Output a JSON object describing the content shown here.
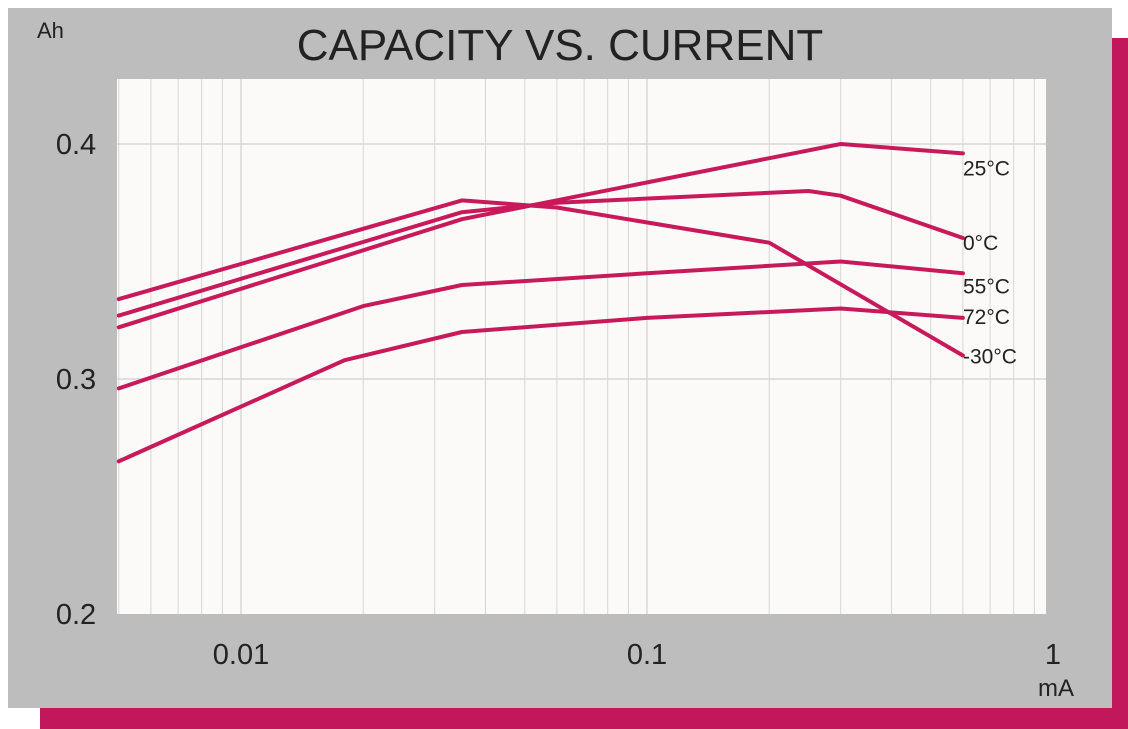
{
  "colors": {
    "panel": "#bdbdbd",
    "plot_bg": "#fbfaf8",
    "accent_border": "#c2185b",
    "curve": "#c81a5a",
    "grid": "#d6d6d6",
    "text": "#222222"
  },
  "chart_data": {
    "type": "line",
    "title": "CAPACITY  VS. CURRENT",
    "xlabel": "mA",
    "ylabel": "Ah",
    "x_scale": "log",
    "xlim": [
      0.005,
      1
    ],
    "ylim": [
      0.2,
      0.42
    ],
    "x_ticks": [
      {
        "value": 0.01,
        "label": "0.01"
      },
      {
        "value": 0.1,
        "label": "0.1"
      },
      {
        "value": 1,
        "label": "1"
      }
    ],
    "y_ticks": [
      {
        "value": 0.4,
        "label": "0.4"
      },
      {
        "value": 0.3,
        "label": "0.3"
      },
      {
        "value": 0.2,
        "label": "0.2"
      }
    ],
    "grid": true,
    "series": [
      {
        "name": "25°C",
        "x": [
          0.005,
          0.035,
          0.3,
          0.6
        ],
        "y": [
          0.322,
          0.368,
          0.4,
          0.396
        ]
      },
      {
        "name": "0°C",
        "x": [
          0.005,
          0.035,
          0.06,
          0.25,
          0.3,
          0.6
        ],
        "y": [
          0.327,
          0.371,
          0.375,
          0.38,
          0.378,
          0.36
        ]
      },
      {
        "name": "55°C",
        "x": [
          0.005,
          0.02,
          0.035,
          0.1,
          0.3,
          0.6
        ],
        "y": [
          0.296,
          0.331,
          0.34,
          0.345,
          0.35,
          0.345
        ]
      },
      {
        "name": "72°C",
        "x": [
          0.005,
          0.018,
          0.035,
          0.1,
          0.3,
          0.6
        ],
        "y": [
          0.265,
          0.308,
          0.32,
          0.326,
          0.33,
          0.326
        ]
      },
      {
        "name": "-30°C",
        "x": [
          0.005,
          0.035,
          0.06,
          0.2,
          0.6
        ],
        "y": [
          0.334,
          0.376,
          0.373,
          0.358,
          0.31
        ]
      }
    ]
  }
}
